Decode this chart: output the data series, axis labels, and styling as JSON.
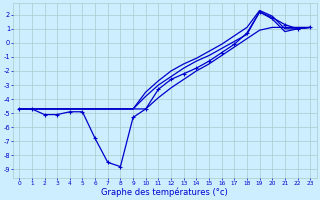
{
  "title": "Graphe des températures (°c)",
  "bg_color": "#cceeff",
  "grid_color": "#aacccc",
  "line_color": "#0000cc",
  "x_ticks": [
    0,
    1,
    2,
    3,
    4,
    5,
    6,
    7,
    8,
    9,
    10,
    11,
    12,
    13,
    14,
    15,
    16,
    17,
    18,
    19,
    20,
    21,
    22,
    23
  ],
  "y_ticks": [
    2,
    1,
    0,
    -1,
    -2,
    -3,
    -4,
    -5,
    -6,
    -7,
    -8,
    -9
  ],
  "ylim": [
    -9.6,
    2.8
  ],
  "xlim": [
    -0.5,
    23.5
  ],
  "line_straight": [
    -4.7,
    -4.7,
    -4.7,
    -4.7,
    -4.7,
    -4.7,
    -4.7,
    -4.7,
    -4.7,
    -4.7,
    -4.7,
    -3.9,
    -3.2,
    -2.6,
    -2.0,
    -1.5,
    -0.9,
    -0.3,
    0.3,
    0.9,
    1.1,
    1.1,
    1.1,
    1.1
  ],
  "line_jagged": [
    -4.7,
    -4.7,
    -5.1,
    -5.1,
    -4.9,
    -4.9,
    -6.8,
    -8.5,
    -8.8,
    -5.3,
    -4.7,
    -3.3,
    -2.6,
    -2.2,
    -1.8,
    -1.3,
    -0.7,
    -0.1,
    0.7,
    2.2,
    1.8,
    1.3,
    1.0,
    1.1
  ],
  "line_upper": [
    -4.7,
    -4.7,
    -4.7,
    -4.7,
    -4.7,
    -4.7,
    -4.7,
    -4.7,
    -4.7,
    -4.7,
    -3.5,
    -2.7,
    -2.0,
    -1.5,
    -1.1,
    -0.6,
    -0.1,
    0.5,
    1.1,
    2.3,
    1.9,
    1.0,
    1.0,
    1.1
  ],
  "line_lower": [
    -4.7,
    -4.7,
    -4.7,
    -4.7,
    -4.7,
    -4.7,
    -4.7,
    -4.7,
    -4.7,
    -4.7,
    -3.8,
    -3.0,
    -2.4,
    -1.8,
    -1.3,
    -0.9,
    -0.4,
    0.1,
    0.6,
    2.2,
    1.7,
    0.8,
    1.0,
    1.1
  ]
}
